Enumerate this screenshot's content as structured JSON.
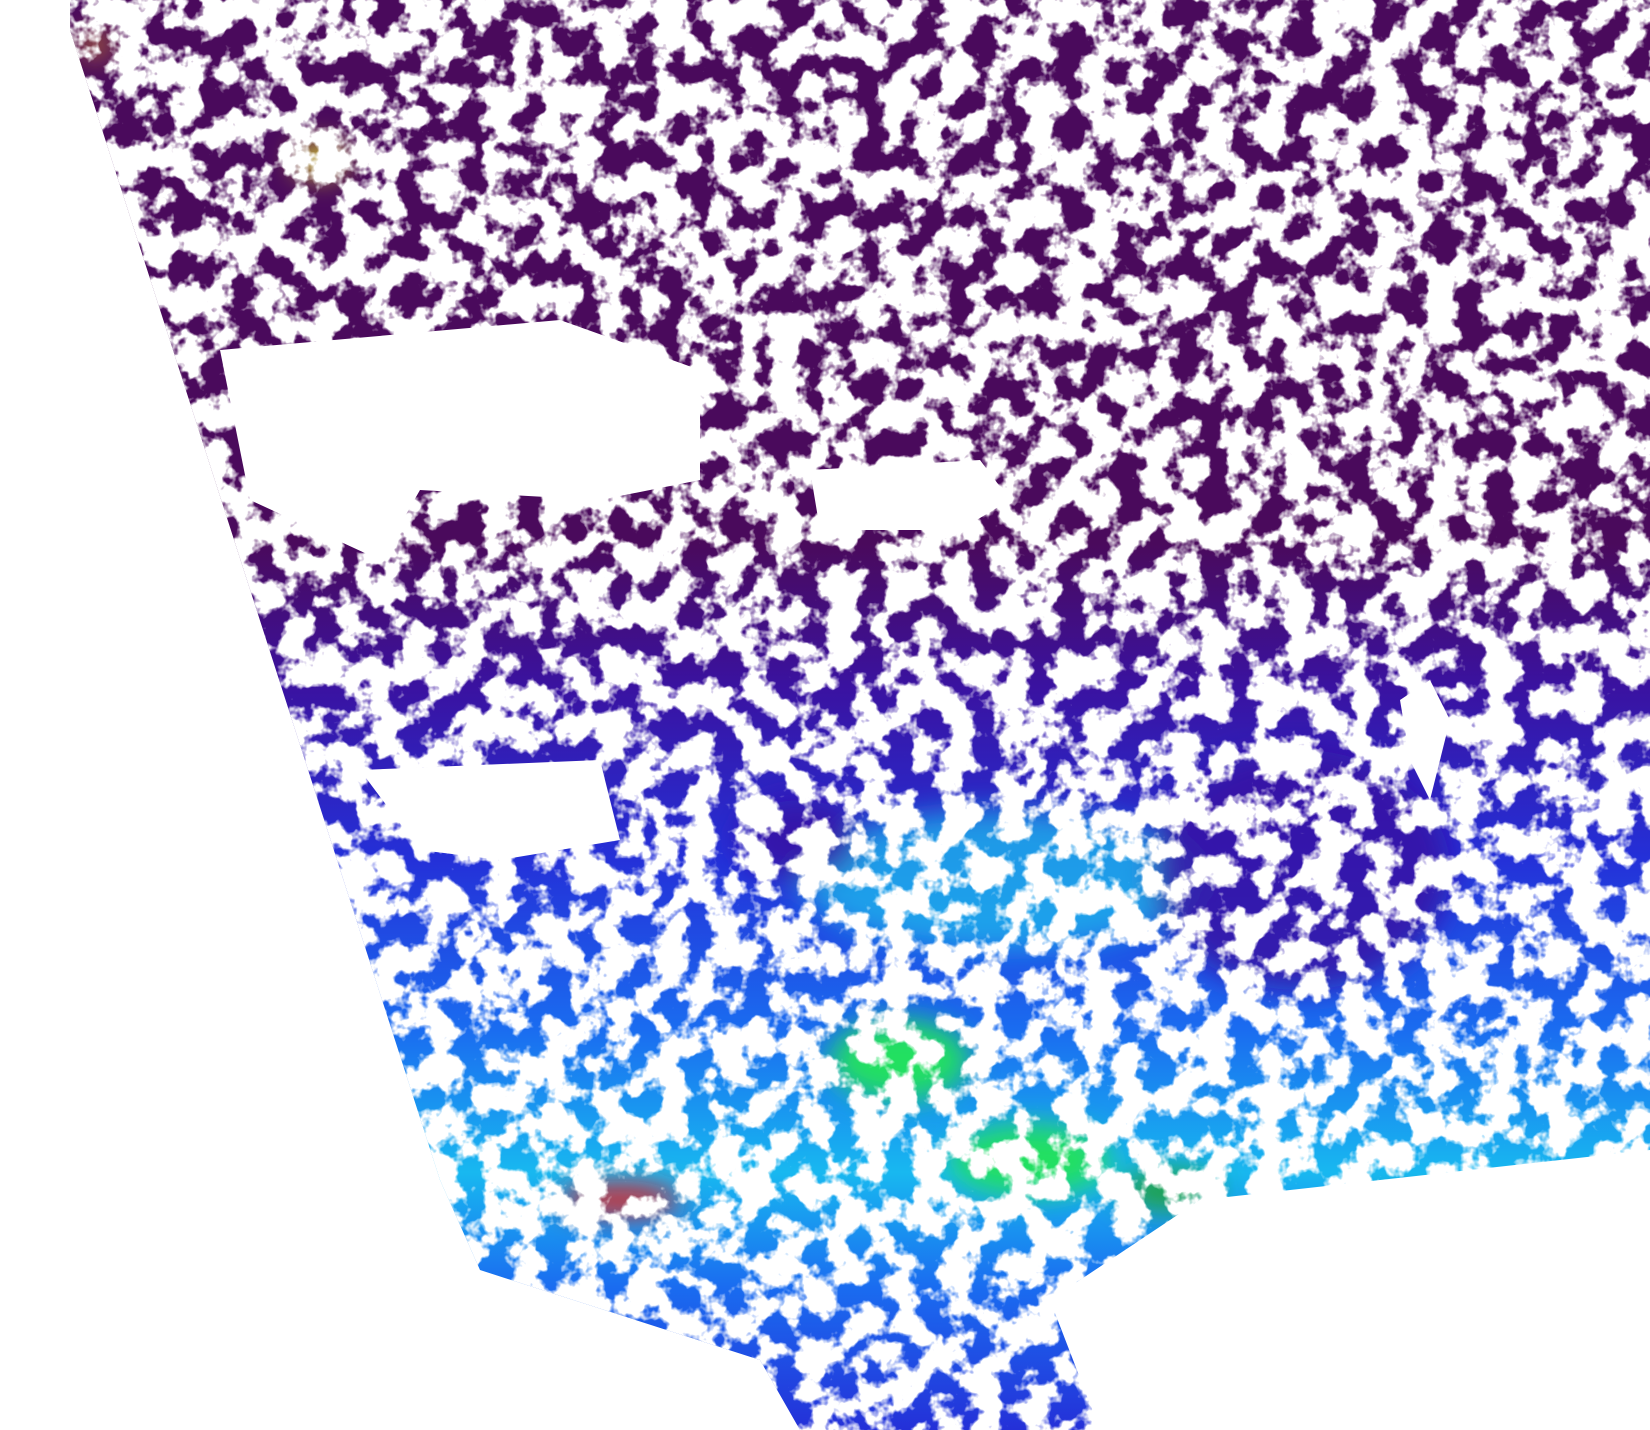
{
  "image": {
    "kind": "satellite swath, ocean color product",
    "background_color": "#ffffff",
    "colormap": [
      "#4a0a5c",
      "#3a12a0",
      "#2430d8",
      "#1a6cf0",
      "#18c8f0",
      "#20e060",
      "#f0f020",
      "#f08020",
      "#e02020"
    ],
    "land_or_lowest_color": "#4a0a5c",
    "cloud_color": "#ffffff"
  }
}
